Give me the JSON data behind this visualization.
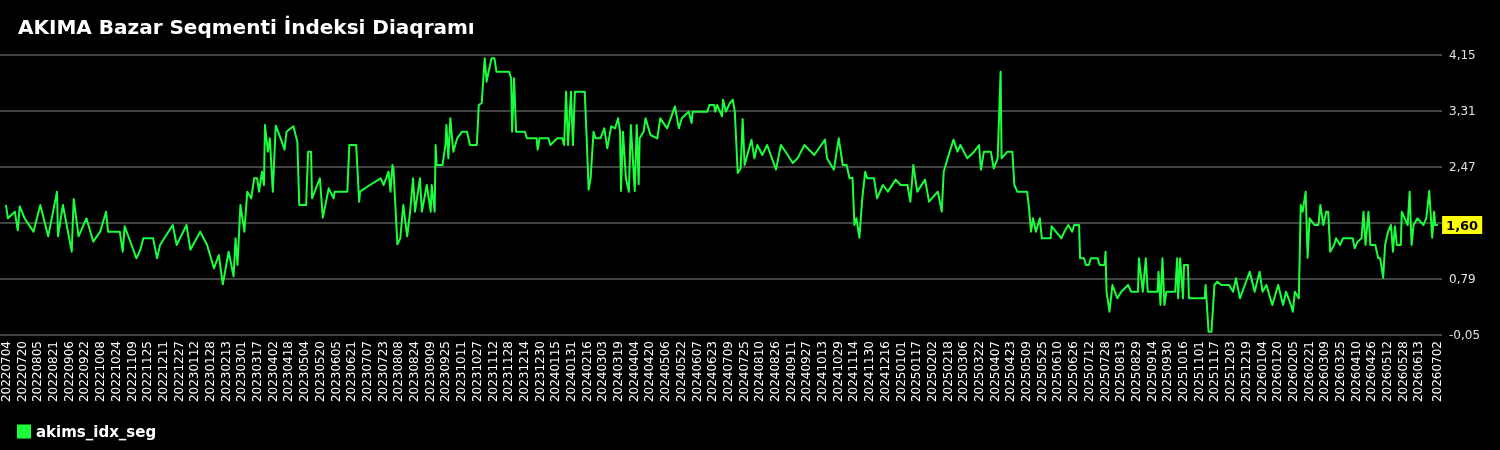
{
  "chart_data": {
    "type": "line",
    "title": "AKIMA Bazar Seqmenti İndeksi Diaqramı",
    "annotations": [
      {
        "text": "1,60",
        "x": "2026-07-02",
        "y": 1.6
      }
    ],
    "x": [
      "2022-07-04",
      "2022-07-06",
      "2022-07-13",
      "2022-07-16",
      "2022-07-18",
      "2022-07-23",
      "2022-08-01",
      "2022-08-08",
      "2022-08-16",
      "2022-08-25",
      "2022-08-26",
      "2022-08-31",
      "2022-09-09",
      "2022-09-11",
      "2022-09-16",
      "2022-09-24",
      "2022-10-01",
      "2022-10-08",
      "2022-10-14",
      "2022-10-16",
      "2022-10-28",
      "2022-10-31",
      "2022-11-02",
      "2022-11-09",
      "2022-11-14",
      "2022-11-18",
      "2022-11-21",
      "2022-12-01",
      "2022-12-05",
      "2022-12-08",
      "2022-12-21",
      "2022-12-25",
      "2023-01-04",
      "2023-01-08",
      "2023-01-18",
      "2023-01-25",
      "2023-02-01",
      "2023-02-06",
      "2023-02-10",
      "2023-02-16",
      "2023-02-21",
      "2023-02-23",
      "2023-02-25",
      "2023-02-28",
      "2023-03-04",
      "2023-03-07",
      "2023-03-11",
      "2023-03-14",
      "2023-03-17",
      "2023-03-19",
      "2023-03-22",
      "2023-03-24",
      "2023-03-25",
      "2023-03-28",
      "2023-03-30",
      "2023-04-02",
      "2023-04-05",
      "2023-04-10",
      "2023-04-14",
      "2023-04-16",
      "2023-04-23",
      "2023-04-27",
      "2023-04-29",
      "2023-05-06",
      "2023-05-08",
      "2023-05-11",
      "2023-05-12",
      "2023-05-20",
      "2023-05-23",
      "2023-05-29",
      "2023-06-03",
      "2023-06-04",
      "2023-06-17",
      "2023-06-19",
      "2023-06-26",
      "2023-06-29",
      "2023-06-30",
      "2023-07-10",
      "2023-07-21",
      "2023-07-24",
      "2023-07-29",
      "2023-07-31",
      "2023-08-02",
      "2023-08-03",
      "2023-08-07",
      "2023-08-10",
      "2023-08-13",
      "2023-08-17",
      "2023-08-20",
      "2023-08-23",
      "2023-08-25",
      "2023-08-30",
      "2023-09-01",
      "2023-09-06",
      "2023-09-10",
      "2023-09-11",
      "2023-09-14",
      "2023-09-15",
      "2023-09-16",
      "2023-09-22",
      "2023-09-25",
      "2023-09-26",
      "2023-09-28",
      "2023-09-30",
      "2023-10-03",
      "2023-10-07",
      "2023-10-12",
      "2023-10-17",
      "2023-10-20",
      "2023-10-27",
      "2023-10-29",
      "2023-11-01",
      "2023-11-04",
      "2023-11-06",
      "2023-11-08",
      "2023-11-11",
      "2023-11-14",
      "2023-11-16",
      "2023-11-29",
      "2023-12-01",
      "2023-12-02",
      "2023-12-04",
      "2023-12-06",
      "2023-12-15",
      "2023-12-17",
      "2023-12-27",
      "2023-12-28",
      "2023-12-30",
      "2024-01-08",
      "2024-01-10",
      "2024-01-17",
      "2024-01-22",
      "2024-01-24",
      "2024-01-26",
      "2024-01-28",
      "2024-01-31",
      "2024-02-02",
      "2024-02-04",
      "2024-02-14",
      "2024-02-16",
      "2024-02-18",
      "2024-02-20",
      "2024-02-23",
      "2024-02-25",
      "2024-03-01",
      "2024-03-05",
      "2024-03-08",
      "2024-03-12",
      "2024-03-16",
      "2024-03-19",
      "2024-03-21",
      "2024-03-22",
      "2024-03-24",
      "2024-03-27",
      "2024-03-30",
      "2024-04-01",
      "2024-04-05",
      "2024-04-07",
      "2024-04-09",
      "2024-04-10",
      "2024-04-14",
      "2024-04-16",
      "2024-04-21",
      "2024-04-28",
      "2024-05-01",
      "2024-05-08",
      "2024-05-16",
      "2024-05-20",
      "2024-05-23",
      "2024-05-30",
      "2024-06-02",
      "2024-06-03",
      "2024-06-18",
      "2024-06-20",
      "2024-06-25",
      "2024-06-26",
      "2024-06-28",
      "2024-07-03",
      "2024-07-04",
      "2024-07-07",
      "2024-07-11",
      "2024-07-14",
      "2024-07-16",
      "2024-07-19",
      "2024-07-22",
      "2024-07-24",
      "2024-07-26",
      "2024-08-02",
      "2024-08-05",
      "2024-08-08",
      "2024-08-13",
      "2024-08-18",
      "2024-08-27",
      "2024-09-01",
      "2024-09-08",
      "2024-09-13",
      "2024-09-18",
      "2024-09-25",
      "2024-10-05",
      "2024-10-16",
      "2024-10-18",
      "2024-10-25",
      "2024-10-30",
      "2024-11-03",
      "2024-11-07",
      "2024-11-10",
      "2024-11-13",
      "2024-11-15",
      "2024-11-17",
      "2024-11-20",
      "2024-11-23",
      "2024-11-26",
      "2024-11-28",
      "2024-12-05",
      "2024-12-08",
      "2024-12-14",
      "2024-12-19",
      "2024-12-27",
      "2025-01-01",
      "2025-01-08",
      "2025-01-11",
      "2025-01-14",
      "2025-01-18",
      "2025-01-26",
      "2025-01-30",
      "2025-02-08",
      "2025-02-12",
      "2025-02-14",
      "2025-02-18",
      "2025-02-24",
      "2025-02-28",
      "2025-03-03",
      "2025-03-10",
      "2025-03-17",
      "2025-03-22",
      "2025-03-24",
      "2025-03-27",
      "2025-04-03",
      "2025-04-06",
      "2025-04-10",
      "2025-04-13",
      "2025-04-14",
      "2025-04-20",
      "2025-04-25",
      "2025-04-27",
      "2025-04-30",
      "2025-05-10",
      "2025-05-12",
      "2025-05-14",
      "2025-05-16",
      "2025-05-19",
      "2025-05-23",
      "2025-05-25",
      "2025-06-03",
      "2025-06-04",
      "2025-06-14",
      "2025-06-17",
      "2025-06-21",
      "2025-06-25",
      "2025-06-27",
      "2025-07-02",
      "2025-07-03",
      "2025-07-07",
      "2025-07-09",
      "2025-07-12",
      "2025-07-14",
      "2025-07-21",
      "2025-07-23",
      "2025-07-28",
      "2025-07-29",
      "2025-07-30",
      "2025-08-02",
      "2025-08-05",
      "2025-08-10",
      "2025-08-14",
      "2025-08-21",
      "2025-08-24",
      "2025-08-31",
      "2025-09-01",
      "2025-09-05",
      "2025-09-08",
      "2025-09-10",
      "2025-09-20",
      "2025-09-21",
      "2025-09-23",
      "2025-09-25",
      "2025-09-27",
      "2025-09-29",
      "2025-10-08",
      "2025-10-10",
      "2025-10-11",
      "2025-10-13",
      "2025-10-16",
      "2025-10-17",
      "2025-10-21",
      "2025-10-22",
      "2025-11-07",
      "2025-11-08",
      "2025-11-11",
      "2025-11-14",
      "2025-11-17",
      "2025-11-20",
      "2025-11-24",
      "2025-12-02",
      "2025-12-06",
      "2025-12-09",
      "2025-12-13",
      "2025-12-18",
      "2025-12-23",
      "2025-12-28",
      "2026-01-02",
      "2026-01-05",
      "2026-01-09",
      "2026-01-15",
      "2026-01-21",
      "2026-01-26",
      "2026-01-29",
      "2026-02-03",
      "2026-02-05",
      "2026-02-07",
      "2026-02-11",
      "2026-02-13",
      "2026-02-15",
      "2026-02-18",
      "2026-02-20",
      "2026-02-22",
      "2026-02-27",
      "2026-03-03",
      "2026-03-05",
      "2026-03-08",
      "2026-03-11",
      "2026-03-13",
      "2026-03-15",
      "2026-03-19",
      "2026-03-21",
      "2026-03-25",
      "2026-03-28",
      "2026-04-07",
      "2026-04-09",
      "2026-04-12",
      "2026-04-16",
      "2026-04-18",
      "2026-04-20",
      "2026-04-23",
      "2026-04-25",
      "2026-04-30",
      "2026-05-03",
      "2026-05-05",
      "2026-05-08",
      "2026-05-10",
      "2026-05-13",
      "2026-05-16",
      "2026-05-18",
      "2026-05-20",
      "2026-05-22",
      "2026-05-26",
      "2026-05-27",
      "2026-05-30",
      "2026-06-02",
      "2026-06-04",
      "2026-06-06",
      "2026-06-08",
      "2026-06-12",
      "2026-06-18",
      "2026-06-21",
      "2026-06-24",
      "2026-06-27",
      "2026-06-29",
      "2026-06-30",
      "2026-07-02"
    ],
    "series": [
      {
        "name": "akims_idx_seg",
        "color": "#1aff3c",
        "values": [
          1.89,
          1.7,
          1.8,
          1.52,
          1.88,
          1.7,
          1.5,
          1.9,
          1.43,
          2.1,
          1.43,
          1.9,
          1.2,
          1.99,
          1.43,
          1.7,
          1.35,
          1.5,
          1.8,
          1.5,
          1.5,
          1.2,
          1.58,
          1.3,
          1.1,
          1.23,
          1.4,
          1.4,
          1.1,
          1.3,
          1.6,
          1.3,
          1.6,
          1.23,
          1.5,
          1.3,
          0.95,
          1.15,
          0.71,
          1.2,
          0.83,
          1.4,
          1.0,
          1.9,
          1.5,
          2.1,
          2.0,
          2.3,
          2.3,
          2.1,
          2.4,
          2.2,
          3.1,
          2.7,
          2.9,
          2.1,
          3.09,
          2.9,
          2.73,
          3.0,
          3.08,
          2.85,
          1.9,
          1.9,
          2.7,
          2.7,
          2.0,
          2.3,
          1.71,
          2.15,
          2.0,
          2.1,
          2.1,
          2.8,
          2.8,
          1.95,
          2.1,
          2.2,
          2.3,
          2.2,
          2.4,
          2.1,
          2.5,
          2.45,
          1.31,
          1.4,
          1.9,
          1.43,
          1.8,
          2.3,
          1.8,
          2.3,
          1.8,
          2.2,
          1.8,
          2.2,
          1.8,
          2.8,
          2.5,
          2.5,
          2.8,
          3.1,
          2.6,
          3.2,
          2.7,
          2.9,
          3.0,
          3.0,
          2.8,
          2.8,
          3.4,
          3.43,
          4.1,
          3.75,
          3.9,
          4.1,
          4.1,
          3.9,
          3.9,
          3.8,
          3.0,
          3.8,
          3.0,
          3.0,
          2.9,
          2.9,
          2.73,
          2.9,
          2.9,
          2.8,
          2.9,
          2.9,
          2.8,
          3.6,
          2.8,
          3.6,
          2.8,
          3.6,
          3.6,
          2.9,
          2.13,
          2.3,
          3.0,
          2.9,
          2.9,
          3.05,
          2.75,
          3.08,
          3.05,
          3.2,
          3.0,
          2.11,
          3.0,
          2.3,
          2.1,
          3.1,
          2.11,
          3.1,
          2.21,
          2.9,
          3.0,
          3.2,
          2.95,
          2.9,
          3.2,
          3.05,
          3.38,
          3.05,
          3.2,
          3.3,
          3.13,
          3.3,
          3.3,
          3.4,
          3.4,
          3.3,
          3.4,
          3.23,
          3.48,
          3.3,
          3.43,
          3.48,
          3.3,
          2.38,
          2.45,
          3.19,
          2.5,
          2.88,
          2.6,
          2.8,
          2.65,
          2.8,
          2.43,
          2.8,
          2.65,
          2.53,
          2.6,
          2.8,
          2.65,
          2.88,
          2.6,
          2.43,
          2.9,
          2.5,
          2.5,
          2.3,
          2.31,
          1.6,
          1.7,
          1.41,
          2.0,
          2.4,
          2.3,
          2.3,
          2.0,
          2.2,
          2.1,
          2.28,
          2.2,
          2.2,
          1.95,
          2.5,
          2.1,
          2.28,
          1.95,
          2.1,
          1.8,
          2.4,
          2.6,
          2.88,
          2.7,
          2.8,
          2.6,
          2.7,
          2.8,
          2.43,
          2.7,
          2.7,
          2.45,
          2.6,
          3.9,
          2.6,
          2.7,
          2.7,
          2.2,
          2.1,
          2.1,
          1.85,
          1.5,
          1.7,
          1.5,
          1.7,
          1.4,
          1.4,
          1.58,
          1.4,
          1.5,
          1.6,
          1.5,
          1.6,
          1.6,
          1.1,
          1.1,
          1.0,
          1.0,
          1.1,
          1.1,
          1.0,
          1.0,
          1.2,
          0.6,
          0.3,
          0.7,
          0.5,
          0.6,
          0.7,
          0.6,
          0.6,
          1.1,
          0.6,
          1.1,
          0.6,
          0.6,
          0.9,
          0.4,
          1.1,
          0.4,
          0.6,
          0.6,
          1.1,
          0.5,
          1.1,
          0.5,
          1.0,
          1.0,
          0.5,
          0.5,
          0.7,
          0.0,
          0.0,
          0.7,
          0.75,
          0.7,
          0.7,
          0.6,
          0.8,
          0.5,
          0.7,
          0.9,
          0.6,
          0.9,
          0.6,
          0.7,
          0.4,
          0.7,
          0.4,
          0.6,
          0.4,
          0.3,
          0.6,
          0.5,
          1.9,
          1.8,
          2.1,
          1.11,
          1.7,
          1.6,
          1.6,
          1.9,
          1.6,
          1.8,
          1.8,
          1.2,
          1.3,
          1.4,
          1.3,
          1.4,
          1.4,
          1.25,
          1.35,
          1.4,
          1.8,
          1.3,
          1.8,
          1.3,
          1.3,
          1.1,
          1.1,
          0.81,
          1.3,
          1.5,
          1.6,
          1.2,
          1.58,
          1.3,
          1.3,
          1.8,
          1.7,
          1.6,
          2.1,
          1.3,
          1.6,
          1.7,
          1.6,
          1.7,
          2.11,
          1.41,
          1.8,
          1.6,
          1.6
        ]
      }
    ],
    "xlim": [
      "2022-06-28",
      "2026-07-07"
    ],
    "xticks": [
      {
        "value": "2022-07-04",
        "label": "20220704"
      },
      {
        "value": "2022-07-20",
        "label": "20220720"
      },
      {
        "value": "2022-08-05",
        "label": "20220805"
      },
      {
        "value": "2022-08-21",
        "label": "20220821"
      },
      {
        "value": "2022-09-06",
        "label": "20220906"
      },
      {
        "value": "2022-09-22",
        "label": "20220922"
      },
      {
        "value": "2022-10-08",
        "label": "20221008"
      },
      {
        "value": "2022-10-24",
        "label": "20221024"
      },
      {
        "value": "2022-11-09",
        "label": "20221109"
      },
      {
        "value": "2022-11-25",
        "label": "20221125"
      },
      {
        "value": "2022-12-11",
        "label": "20221211"
      },
      {
        "value": "2022-12-27",
        "label": "20221227"
      },
      {
        "value": "2023-01-12",
        "label": "20230112"
      },
      {
        "value": "2023-01-28",
        "label": "20230128"
      },
      {
        "value": "2023-02-13",
        "label": "20230213"
      },
      {
        "value": "2023-03-01",
        "label": "20230301"
      },
      {
        "value": "2023-03-17",
        "label": "20230317"
      },
      {
        "value": "2023-04-02",
        "label": "20230402"
      },
      {
        "value": "2023-04-18",
        "label": "20230418"
      },
      {
        "value": "2023-05-04",
        "label": "20230504"
      },
      {
        "value": "2023-05-20",
        "label": "20230520"
      },
      {
        "value": "2023-06-05",
        "label": "20230605"
      },
      {
        "value": "2023-06-21",
        "label": "20230621"
      },
      {
        "value": "2023-07-07",
        "label": "20230707"
      },
      {
        "value": "2023-07-23",
        "label": "20230723"
      },
      {
        "value": "2023-08-08",
        "label": "20230808"
      },
      {
        "value": "2023-08-24",
        "label": "20230824"
      },
      {
        "value": "2023-09-09",
        "label": "20230909"
      },
      {
        "value": "2023-09-25",
        "label": "20230925"
      },
      {
        "value": "2023-10-11",
        "label": "20231011"
      },
      {
        "value": "2023-10-27",
        "label": "20231027"
      },
      {
        "value": "2023-11-12",
        "label": "20231112"
      },
      {
        "value": "2023-11-28",
        "label": "20231128"
      },
      {
        "value": "2023-12-14",
        "label": "20231214"
      },
      {
        "value": "2023-12-30",
        "label": "20231230"
      },
      {
        "value": "2024-01-15",
        "label": "20240115"
      },
      {
        "value": "2024-01-31",
        "label": "20240131"
      },
      {
        "value": "2024-02-16",
        "label": "20240216"
      },
      {
        "value": "2024-03-03",
        "label": "20240303"
      },
      {
        "value": "2024-03-19",
        "label": "20240319"
      },
      {
        "value": "2024-04-04",
        "label": "20240404"
      },
      {
        "value": "2024-04-20",
        "label": "20240420"
      },
      {
        "value": "2024-05-06",
        "label": "20240506"
      },
      {
        "value": "2024-05-22",
        "label": "20240522"
      },
      {
        "value": "2024-06-07",
        "label": "20240607"
      },
      {
        "value": "2024-06-23",
        "label": "20240623"
      },
      {
        "value": "2024-07-09",
        "label": "20240709"
      },
      {
        "value": "2024-07-25",
        "label": "20240725"
      },
      {
        "value": "2024-08-10",
        "label": "20240810"
      },
      {
        "value": "2024-08-26",
        "label": "20240826"
      },
      {
        "value": "2024-09-11",
        "label": "20240911"
      },
      {
        "value": "2024-09-27",
        "label": "20240927"
      },
      {
        "value": "2024-10-13",
        "label": "20241013"
      },
      {
        "value": "2024-10-29",
        "label": "20241029"
      },
      {
        "value": "2024-11-14",
        "label": "20241114"
      },
      {
        "value": "2024-11-30",
        "label": "20241130"
      },
      {
        "value": "2024-12-16",
        "label": "20241216"
      },
      {
        "value": "2025-01-01",
        "label": "20250101"
      },
      {
        "value": "2025-01-17",
        "label": "20250117"
      },
      {
        "value": "2025-02-02",
        "label": "20250202"
      },
      {
        "value": "2025-02-18",
        "label": "20250218"
      },
      {
        "value": "2025-03-06",
        "label": "20250306"
      },
      {
        "value": "2025-03-22",
        "label": "20250322"
      },
      {
        "value": "2025-04-07",
        "label": "20250407"
      },
      {
        "value": "2025-04-23",
        "label": "20250423"
      },
      {
        "value": "2025-05-09",
        "label": "20250509"
      },
      {
        "value": "2025-05-25",
        "label": "20250525"
      },
      {
        "value": "2025-06-10",
        "label": "20250610"
      },
      {
        "value": "2025-06-26",
        "label": "20250626"
      },
      {
        "value": "2025-07-12",
        "label": "20250712"
      },
      {
        "value": "2025-07-28",
        "label": "20250728"
      },
      {
        "value": "2025-08-13",
        "label": "20250813"
      },
      {
        "value": "2025-08-29",
        "label": "20250829"
      },
      {
        "value": "2025-09-14",
        "label": "20250914"
      },
      {
        "value": "2025-09-30",
        "label": "20250930"
      },
      {
        "value": "2025-10-16",
        "label": "20251016"
      },
      {
        "value": "2025-11-01",
        "label": "20251101"
      },
      {
        "value": "2025-11-17",
        "label": "20251117"
      },
      {
        "value": "2025-12-03",
        "label": "20251203"
      },
      {
        "value": "2025-12-19",
        "label": "20251219"
      },
      {
        "value": "2026-01-04",
        "label": "20260104"
      },
      {
        "value": "2026-01-20",
        "label": "20260120"
      },
      {
        "value": "2026-02-05",
        "label": "20260205"
      },
      {
        "value": "2026-02-21",
        "label": "20260221"
      },
      {
        "value": "2026-03-09",
        "label": "20260309"
      },
      {
        "value": "2026-03-25",
        "label": "20260325"
      },
      {
        "value": "2026-04-10",
        "label": "20260410"
      },
      {
        "value": "2026-04-26",
        "label": "20260426"
      },
      {
        "value": "2026-05-12",
        "label": "20260512"
      },
      {
        "value": "2026-05-28",
        "label": "20260528"
      },
      {
        "value": "2026-06-13",
        "label": "20260613"
      },
      {
        "value": "2026-07-02",
        "label": "20260702"
      }
    ],
    "ylim": [
      -0.05,
      4.15
    ],
    "yticks": [
      {
        "value": -0.05,
        "label": "-0,05"
      },
      {
        "value": 0.79,
        "label": "0,79"
      },
      {
        "value": 1.63,
        "label": null
      },
      {
        "value": 2.47,
        "label": "2,47"
      },
      {
        "value": 3.31,
        "label": "3,31"
      },
      {
        "value": 4.15,
        "label": "4,15"
      }
    ],
    "grid": "y",
    "legend": "bottom left"
  }
}
